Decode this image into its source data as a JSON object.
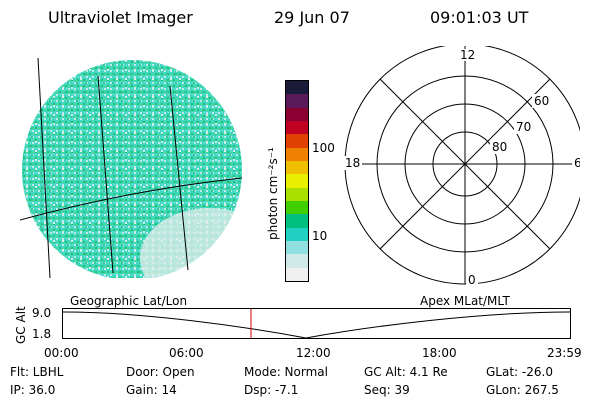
{
  "header": {
    "instrument": "Ultraviolet Imager",
    "date": "29 Jun 07",
    "time": "09:01:03 UT"
  },
  "colorbar": {
    "unit_label": "photon cm⁻²s⁻¹",
    "ticks": [
      "100",
      "10"
    ],
    "colors": [
      "#1a1a3a",
      "#5a1a5a",
      "#8a0030",
      "#c00020",
      "#e04000",
      "#f08000",
      "#f0c000",
      "#e8f000",
      "#a8e000",
      "#40d000",
      "#00c080",
      "#20d0c0",
      "#90e0e0",
      "#d0eaea",
      "#f0f0f0"
    ]
  },
  "polar_plot": {
    "mlt_labels": [
      "12",
      "18",
      "6",
      "0"
    ],
    "lat_labels": [
      "60",
      "70",
      "80"
    ]
  },
  "timeline": {
    "left_label": "Geographic Lat/Lon",
    "right_label": "Apex MLat/MLT",
    "axis_label": "GC Alt",
    "y_ticks": [
      "9.0",
      "1.8"
    ],
    "x_ticks": [
      "00:00",
      "06:00",
      "12:00",
      "18:00",
      "23:59"
    ]
  },
  "info": {
    "filter": "Flt: LBHL",
    "ip": "IP: 36.0",
    "door": "Door: Open",
    "gain": "Gain: 14",
    "mode": "Mode: Normal",
    "dsp": "Dsp:    -7.1",
    "gc_alt": "GC Alt: 4.1 Re",
    "seq": "Seq: 39",
    "glat": "GLat: -26.0",
    "glon": "GLon: 267.5"
  }
}
